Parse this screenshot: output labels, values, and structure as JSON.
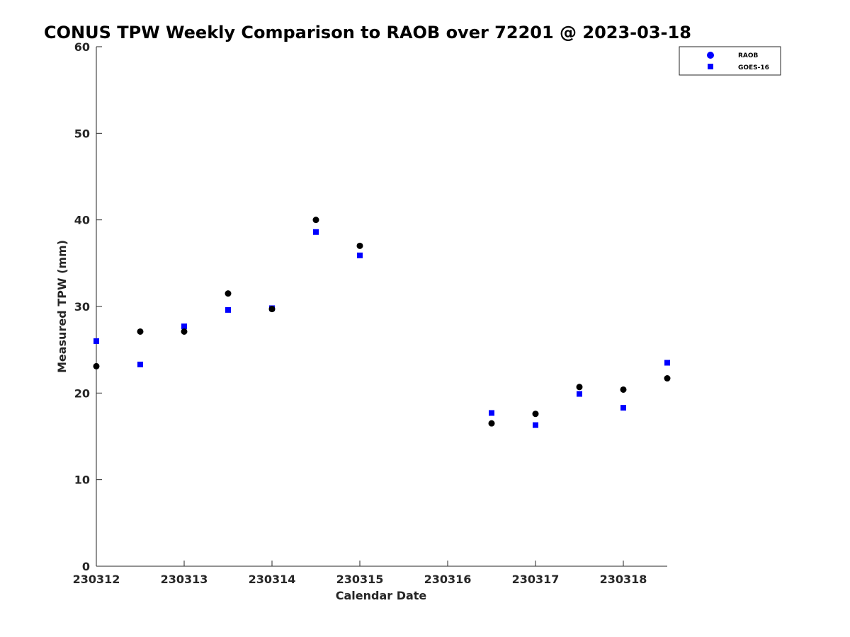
{
  "chart_data": {
    "type": "scatter",
    "title": "CONUS TPW Weekly Comparison to RAOB over 72201 @ 2023-03-18",
    "xlabel": "Calendar Date",
    "ylabel": "Measured TPW (mm)",
    "xlim": [
      0,
      6.5
    ],
    "ylim": [
      0,
      60
    ],
    "x_ticks": [
      0,
      1,
      2,
      3,
      4,
      5,
      6
    ],
    "x_tick_labels": [
      "230312",
      "230313",
      "230314",
      "230315",
      "230316",
      "230317",
      "230318"
    ],
    "y_ticks": [
      0,
      10,
      20,
      30,
      40,
      50,
      60
    ],
    "y_tick_labels": [
      "0",
      "10",
      "20",
      "30",
      "40",
      "50",
      "60"
    ],
    "grid": false,
    "legend_position": "top-right",
    "series": [
      {
        "name": "RAOB",
        "legend_label": "RAOB",
        "marker": "circle",
        "point_color": "#000000",
        "legend_color": "#0000ff",
        "x": [
          0,
          0.5,
          1,
          1.5,
          2,
          2.5,
          3,
          4.5,
          5,
          5.5,
          6,
          6.5
        ],
        "values": [
          23.1,
          27.1,
          27.1,
          31.5,
          29.7,
          40.0,
          37.0,
          16.5,
          17.6,
          20.7,
          20.4,
          21.7
        ]
      },
      {
        "name": "GOES-16",
        "legend_label": "GOES-16",
        "marker": "square",
        "point_color": "#0000ff",
        "legend_color": "#0000ff",
        "x": [
          0,
          0.5,
          1,
          1.5,
          2,
          2.5,
          3,
          4.5,
          5,
          5.5,
          6,
          6.5
        ],
        "values": [
          26.0,
          23.3,
          27.7,
          29.6,
          29.8,
          38.6,
          35.9,
          17.7,
          16.3,
          19.9,
          18.3,
          23.5
        ]
      }
    ]
  }
}
